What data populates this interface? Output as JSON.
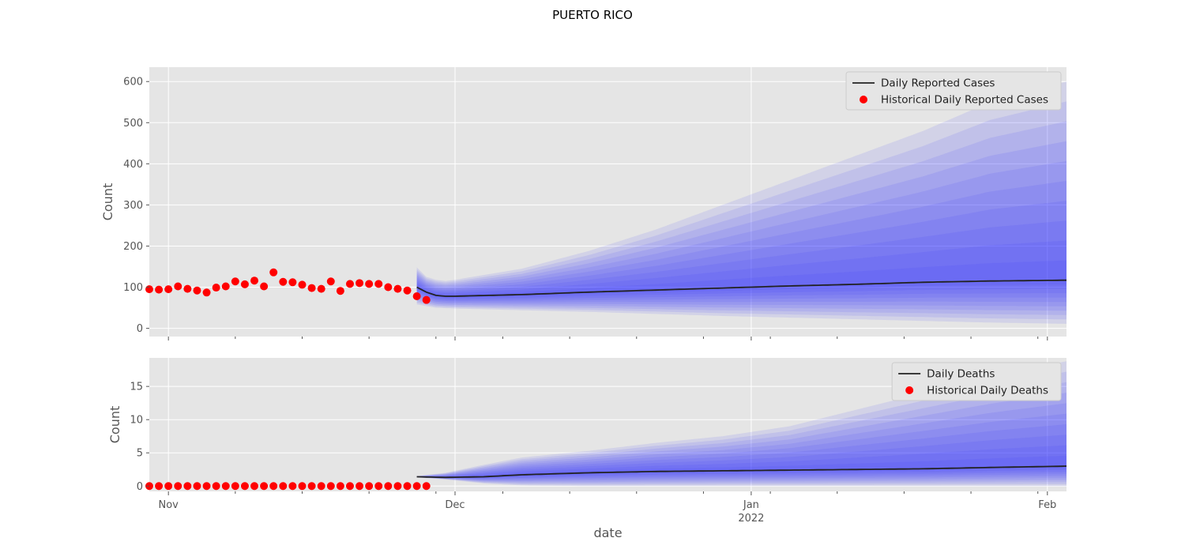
{
  "figure": {
    "title": "PUERTO RICO",
    "xlabel": "date",
    "x_ticks": [
      {
        "date": "2021-11-01",
        "label": "Nov",
        "sublabel": ""
      },
      {
        "date": "2021-12-01",
        "label": "Dec",
        "sublabel": ""
      },
      {
        "date": "2022-01-01",
        "label": "Jan",
        "sublabel": "2022"
      },
      {
        "date": "2022-02-01",
        "label": "Feb",
        "sublabel": ""
      }
    ],
    "xlim": [
      "2021-10-30",
      "2022-02-03"
    ],
    "band_color": "#3030ff",
    "line_color": "#222222",
    "point_color": "#ff0000",
    "background": "#e5e5e5",
    "grid": true,
    "style": "ggplot"
  },
  "chart_data": [
    {
      "type": "line",
      "panel": "top",
      "ylabel": "Count",
      "ylim": [
        -20,
        635
      ],
      "yticks": [
        0,
        100,
        200,
        300,
        400,
        500,
        600
      ],
      "legend": {
        "placement": "top-right",
        "line_label": "Daily Reported Cases",
        "points_label": "Historical Daily Reported Cases"
      },
      "historical": {
        "name": "Historical Daily Reported Cases",
        "x": [
          "2021-10-30",
          "2021-10-31",
          "2021-11-01",
          "2021-11-02",
          "2021-11-03",
          "2021-11-04",
          "2021-11-05",
          "2021-11-06",
          "2021-11-07",
          "2021-11-08",
          "2021-11-09",
          "2021-11-10",
          "2021-11-11",
          "2021-11-12",
          "2021-11-13",
          "2021-11-14",
          "2021-11-15",
          "2021-11-16",
          "2021-11-17",
          "2021-11-18",
          "2021-11-19",
          "2021-11-20",
          "2021-11-21",
          "2021-11-22",
          "2021-11-23",
          "2021-11-24",
          "2021-11-25",
          "2021-11-26",
          "2021-11-27",
          "2021-11-28"
        ],
        "y": [
          95,
          94,
          95,
          102,
          96,
          92,
          87,
          99,
          102,
          114,
          107,
          116,
          102,
          136,
          113,
          112,
          106,
          98,
          96,
          114,
          91,
          108,
          110,
          108,
          108,
          100,
          96,
          92,
          78,
          69
        ]
      },
      "forecast": {
        "name": "Daily Reported Cases",
        "x": [
          "2021-11-27",
          "2021-11-28",
          "2021-11-29",
          "2021-11-30",
          "2021-12-01",
          "2021-12-08",
          "2021-12-15",
          "2021-12-22",
          "2021-12-29",
          "2022-01-05",
          "2022-01-12",
          "2022-01-19",
          "2022-01-26",
          "2022-02-03"
        ],
        "median": [
          100,
          88,
          80,
          78,
          78,
          82,
          88,
          93,
          98,
          103,
          107,
          112,
          115,
          117
        ],
        "upper_outer": [
          148,
          125,
          118,
          115,
          118,
          145,
          188,
          240,
          300,
          360,
          420,
          480,
          550,
          600
        ],
        "lower_outer": [
          58,
          54,
          50,
          49,
          48,
          44,
          40,
          35,
          30,
          26,
          22,
          18,
          14,
          11
        ]
      }
    },
    {
      "type": "line",
      "panel": "bottom",
      "ylabel": "Count",
      "ylim": [
        -0.8,
        19.3
      ],
      "yticks": [
        0,
        5,
        10,
        15
      ],
      "legend": {
        "placement": "top-right",
        "line_label": "Daily Deaths",
        "points_label": "Historical Daily Deaths"
      },
      "historical": {
        "name": "Historical Daily Deaths",
        "x": [
          "2021-10-30",
          "2021-10-31",
          "2021-11-01",
          "2021-11-02",
          "2021-11-03",
          "2021-11-04",
          "2021-11-05",
          "2021-11-06",
          "2021-11-07",
          "2021-11-08",
          "2021-11-09",
          "2021-11-10",
          "2021-11-11",
          "2021-11-12",
          "2021-11-13",
          "2021-11-14",
          "2021-11-15",
          "2021-11-16",
          "2021-11-17",
          "2021-11-18",
          "2021-11-19",
          "2021-11-20",
          "2021-11-21",
          "2021-11-22",
          "2021-11-23",
          "2021-11-24",
          "2021-11-25",
          "2021-11-26",
          "2021-11-27",
          "2021-11-28"
        ],
        "y": [
          0,
          0,
          0,
          0,
          0,
          0,
          0,
          0,
          0,
          0,
          0,
          0,
          0,
          0,
          0,
          0,
          0,
          0,
          0,
          0,
          0,
          0,
          0,
          0,
          0,
          0,
          0,
          0,
          0,
          0
        ]
      },
      "forecast": {
        "name": "Daily Deaths",
        "x": [
          "2021-11-27",
          "2021-11-30",
          "2021-12-04",
          "2021-12-08",
          "2021-12-15",
          "2021-12-22",
          "2021-12-29",
          "2022-01-05",
          "2022-01-12",
          "2022-01-19",
          "2022-01-26",
          "2022-02-03"
        ],
        "median": [
          1.4,
          1.3,
          1.4,
          1.7,
          2.0,
          2.2,
          2.3,
          2.4,
          2.5,
          2.6,
          2.8,
          3.0
        ],
        "upper_outer": [
          1.5,
          2.0,
          3.2,
          4.3,
          5.3,
          6.5,
          7.5,
          9.0,
          11.5,
          14.0,
          16.5,
          18.8
        ],
        "lower_outer": [
          1.3,
          1.0,
          0.4,
          0.1,
          0,
          0,
          0,
          0,
          0,
          0,
          0,
          0
        ]
      }
    }
  ]
}
